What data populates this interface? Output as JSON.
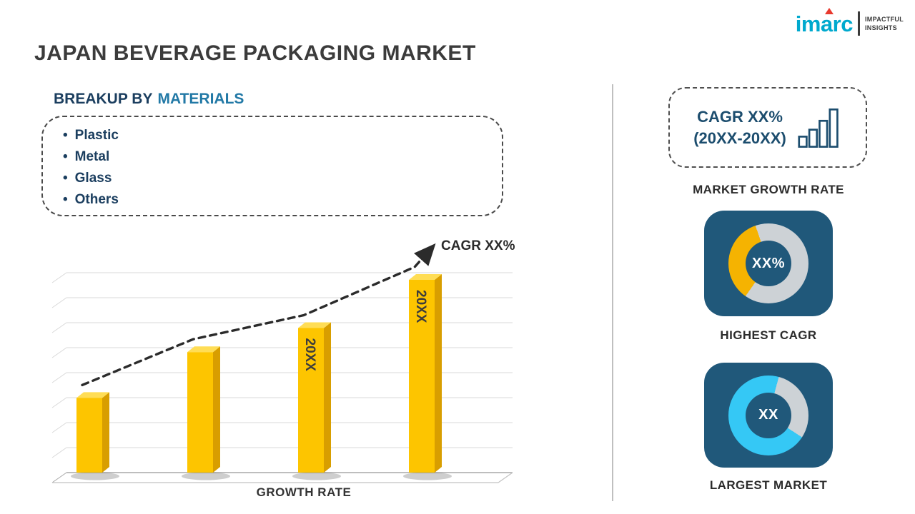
{
  "page": {
    "title": "JAPAN BEVERAGE PACKAGING MARKET"
  },
  "logo": {
    "brand": "imarc",
    "tagline": [
      "IMPACTFUL",
      "INSIGHTS"
    ]
  },
  "breakup": {
    "heading_prefix": "BREAKUP BY",
    "heading_highlight": "MATERIALS",
    "items": [
      "Plastic",
      "Metal",
      "Glass",
      "Others"
    ]
  },
  "chart_data": [
    {
      "type": "bar",
      "title": "",
      "categories": [
        "",
        "",
        "20XX",
        "20XX"
      ],
      "values": [
        31,
        50,
        60,
        80
      ],
      "ylim": [
        0,
        90
      ],
      "xlabel": "GROWTH RATE",
      "ylabel": "",
      "grid": true,
      "legend": "none",
      "bar_color": "#FDC500",
      "bar_side_color": "#D89E00",
      "bar_top_color": "#FFDD55",
      "trend": {
        "label": "CAGR XX%",
        "style": "dashed-arrow-up"
      }
    },
    {
      "type": "pie",
      "variant": "donut",
      "label": "HIGHEST CAGR",
      "center_text": "XX%",
      "start_deg": 215,
      "slices": [
        {
          "name": "cagr-share",
          "percent": 35,
          "color": "#F5B301"
        },
        {
          "name": "remainder",
          "percent": 65,
          "color": "#CDD2D6"
        }
      ]
    },
    {
      "type": "pie",
      "variant": "donut",
      "label": "LARGEST MARKET",
      "center_text": "XX",
      "start_deg": 15,
      "slices": [
        {
          "name": "remainder",
          "percent": 30,
          "color": "#CDD2D6"
        },
        {
          "name": "market-share",
          "percent": 70,
          "color": "#35C8F5"
        }
      ]
    }
  ],
  "right_panel": {
    "cagr_box": {
      "line1": "CAGR XX%",
      "line2": "(20XX-20XX)"
    },
    "market_growth_label": "MARKET GROWTH RATE",
    "highest_cagr_label": "HIGHEST CAGR",
    "largest_market_label": "LARGEST MARKET"
  },
  "colors": {
    "navy": "#1C4D6E",
    "card_navy": "#20587A",
    "heading_navy": "#1B3E5F",
    "heading_teal": "#2279A6",
    "gold": "#FDC500",
    "cyan": "#35C8F5",
    "track_gray": "#CDD2D6"
  }
}
